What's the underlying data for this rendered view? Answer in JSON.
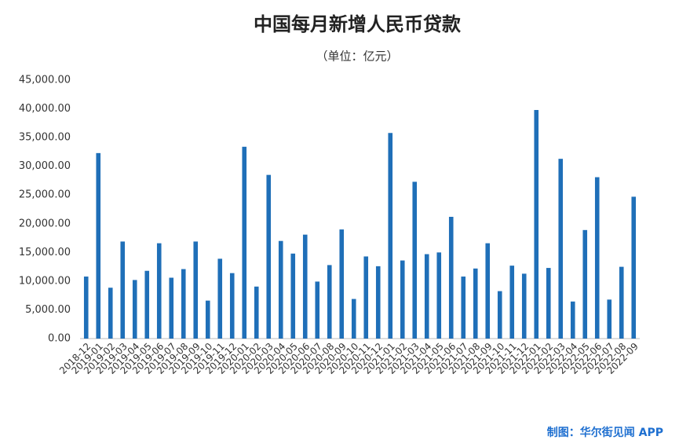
{
  "chart_data": {
    "type": "bar",
    "title": "中国每月新增人民币贷款",
    "subtitle": "（单位：亿元）",
    "source": "制图：华尔街见闻 APP",
    "categories": [
      "2018-12",
      "2019-01",
      "2019-02",
      "2019-03",
      "2019-04",
      "2019-05",
      "2019-06",
      "2019-07",
      "2019-08",
      "2019-09",
      "2019-10",
      "2019-11",
      "2019-12",
      "2020-01",
      "2020-02",
      "2020-03",
      "2020-04",
      "2020-05",
      "2020-06",
      "2020-07",
      "2020-08",
      "2020-09",
      "2020-10",
      "2020-11",
      "2020-12",
      "2021-01",
      "2021-02",
      "2021-03",
      "2021-04",
      "2021-05",
      "2021-06",
      "2021-07",
      "2021-08",
      "2021-09",
      "2021-10",
      "2021-11",
      "2021-12",
      "2022-01",
      "2022-02",
      "2022-03",
      "2022-04",
      "2022-05",
      "2022-06",
      "2022-07",
      "2022-08",
      "2022-09"
    ],
    "values": [
      10800,
      32300,
      8858,
      16900,
      10200,
      11800,
      16600,
      10600,
      12100,
      16900,
      6613,
      13900,
      11400,
      33400,
      9057,
      28500,
      17000,
      14800,
      18100,
      9927,
      12800,
      19000,
      6898,
      14300,
      12600,
      35800,
      13600,
      27300,
      14700,
      15000,
      21200,
      10800,
      12200,
      16600,
      8262,
      12700,
      11300,
      39800,
      12300,
      31300,
      6454,
      18900,
      28100,
      6790,
      12500,
      24700
    ],
    "color": "#1f6fb8",
    "ylim": [
      0,
      45000
    ],
    "yticks": [
      {
        "value": 0,
        "label": "0.00"
      },
      {
        "value": 5000,
        "label": "5,000.00"
      },
      {
        "value": 10000,
        "label": "10,000.00"
      },
      {
        "value": 15000,
        "label": "15,000.00"
      },
      {
        "value": 20000,
        "label": "20,000.00"
      },
      {
        "value": 25000,
        "label": "25,000.00"
      },
      {
        "value": 30000,
        "label": "30,000.00"
      },
      {
        "value": 35000,
        "label": "35,000.00"
      },
      {
        "value": 40000,
        "label": "40,000.00"
      },
      {
        "value": 45000,
        "label": "45,000.00"
      }
    ],
    "grid": false
  }
}
